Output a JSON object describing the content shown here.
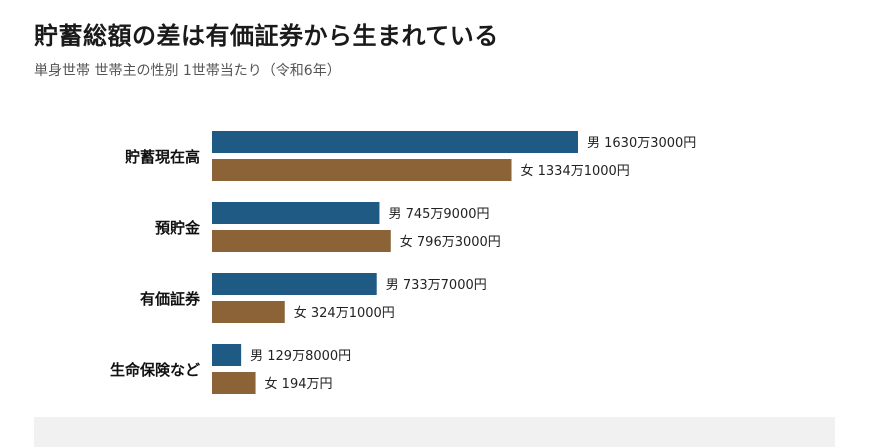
{
  "header": {
    "title": "貯蓄総額の差は有価証券から生まれている",
    "subtitle": "単身世帯 世帯主の性別 1世帯当たり（令和6年）"
  },
  "colors": {
    "male": "#1f5a85",
    "female": "#8b6337"
  },
  "chart_data": {
    "type": "bar",
    "orientation": "horizontal",
    "title": "貯蓄総額の差は有価証券から生まれている",
    "subtitle": "単身世帯 世帯主の性別 1世帯当たり（令和6年）",
    "categories": [
      "貯蓄現在高",
      "預貯金",
      "有価証券",
      "生命保険など"
    ],
    "unit": "円",
    "series": [
      {
        "name": "男",
        "values": [
          16303000,
          7459000,
          7337000,
          1298000
        ],
        "labels": [
          "男 1630万3000円",
          "男 745万9000円",
          "男 733万7000円",
          "男 129万8000円"
        ]
      },
      {
        "name": "女",
        "values": [
          13341000,
          7963000,
          3241000,
          1940000
        ],
        "labels": [
          "女 1334万1000円",
          "女 796万3000円",
          "女 324万1000円",
          "女 194万円"
        ]
      }
    ],
    "xlim": [
      0,
      16303000
    ],
    "grid": false,
    "legend": "none"
  }
}
